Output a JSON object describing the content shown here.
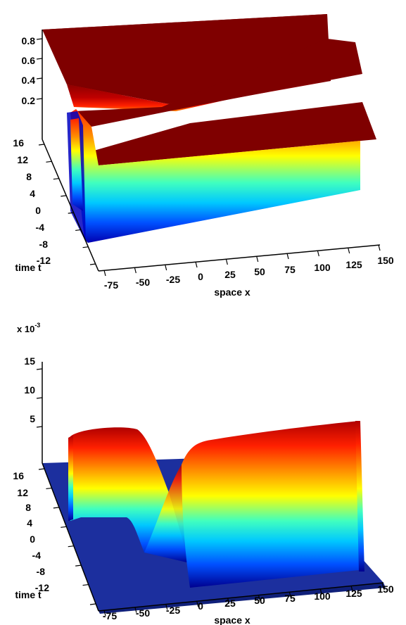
{
  "chart_data": [
    {
      "type": "surface",
      "title": "",
      "xlabel": "space x",
      "ylabel": "time t",
      "zlabel": "",
      "x_ticks": [
        "-75",
        "-50",
        "-25",
        "0",
        "25",
        "50",
        "75",
        "100",
        "125",
        "150"
      ],
      "y_ticks": [
        "-12",
        "-8",
        "-4",
        "0",
        "4",
        "8",
        "12",
        "16"
      ],
      "z_ticks": [
        "0.2",
        "0.4",
        "0.6",
        "0.8"
      ],
      "xlim": [
        -75,
        150
      ],
      "ylim": [
        -12,
        16
      ],
      "zlim": [
        0,
        0.9
      ],
      "colormap": "jet",
      "grid": false,
      "legend": "none"
    },
    {
      "type": "surface",
      "title": "",
      "xlabel": "space x",
      "ylabel": "time t",
      "zlabel": "",
      "z_scale_label": "x 10",
      "z_scale_exponent": "-3",
      "x_ticks": [
        "-75",
        "-50",
        "-25",
        "0",
        "25",
        "50",
        "75",
        "100",
        "125",
        "150"
      ],
      "y_ticks": [
        "-12",
        "-8",
        "-4",
        "0",
        "4",
        "8",
        "12",
        "16"
      ],
      "z_ticks": [
        "5",
        "10",
        "15"
      ],
      "xlim": [
        -75,
        150
      ],
      "ylim": [
        -12,
        16
      ],
      "zlim": [
        0,
        15
      ],
      "colormap": "jet",
      "grid": false,
      "legend": "none"
    }
  ],
  "colors": {
    "jet_top": "#7f0000",
    "jet_red": "#ff0000",
    "jet_orange": "#ff8000",
    "jet_yellow": "#ffff00",
    "jet_cyan": "#00ffff",
    "jet_blue": "#0000ff",
    "jet_bottom": "#00008f",
    "floor_blue": "#1c2f9e"
  }
}
